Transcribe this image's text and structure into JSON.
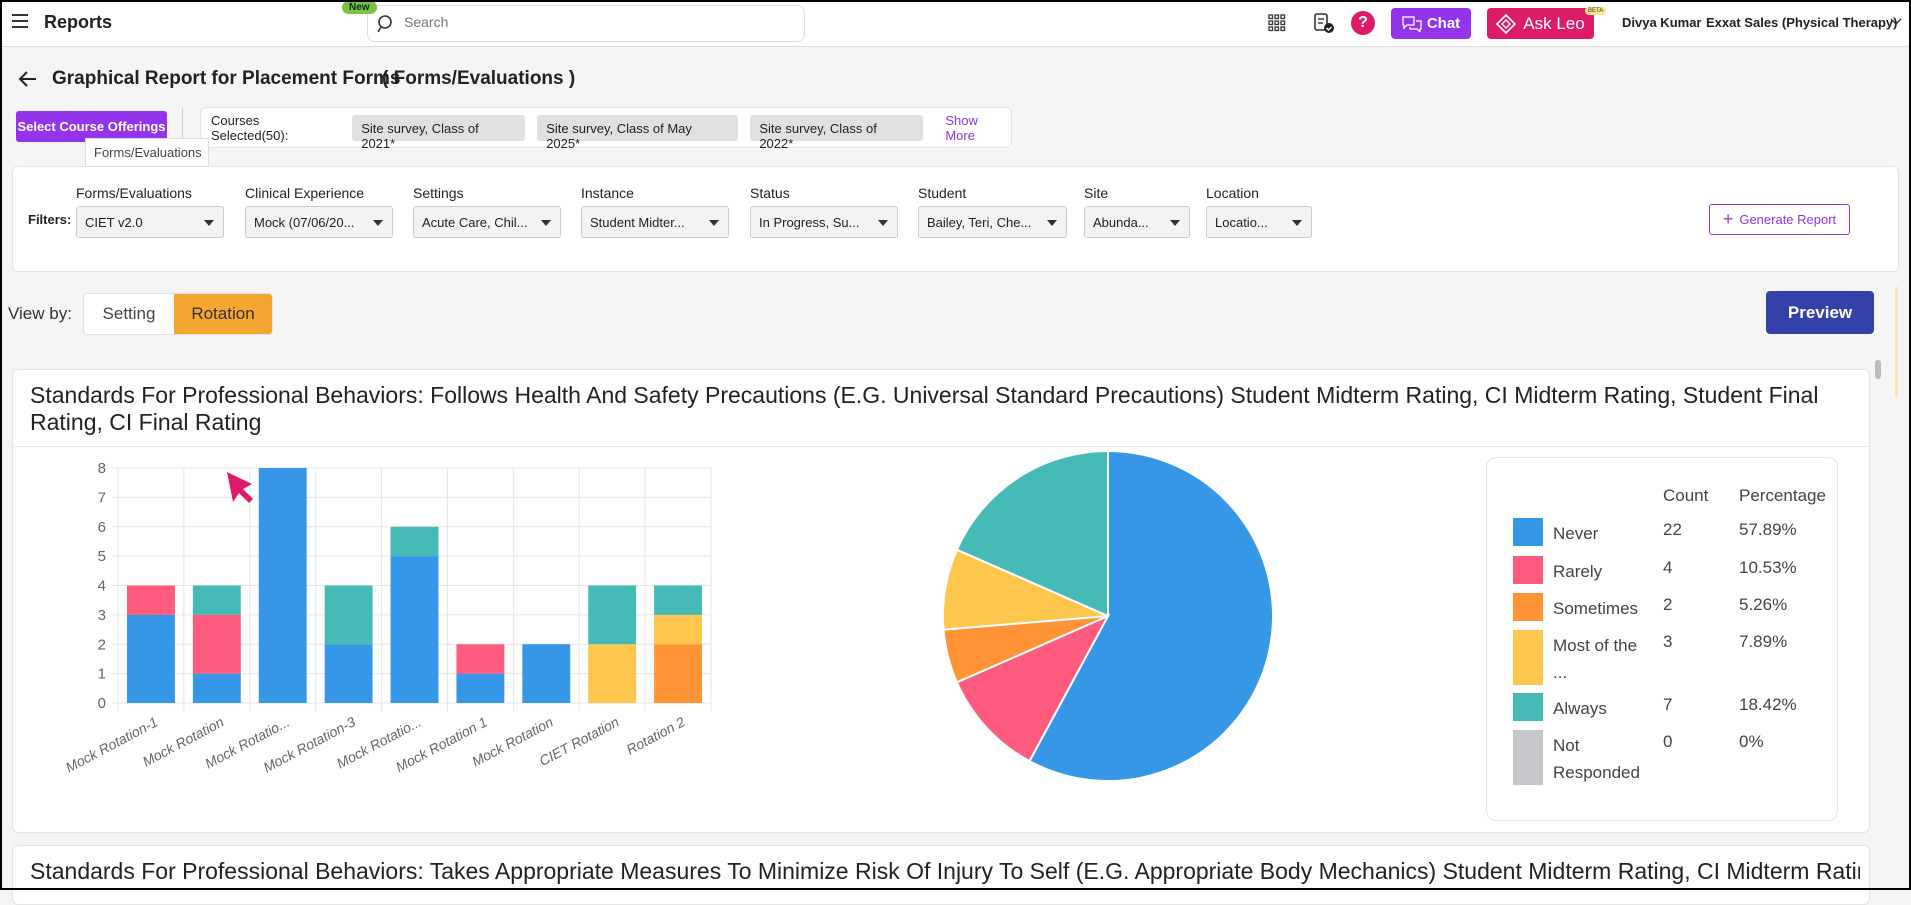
{
  "header": {
    "app_title": "Reports",
    "search_placeholder": "Search",
    "new_badge": "New",
    "chat_label": "Chat",
    "ask_leo_label": "Ask Leo",
    "beta_badge": "BETA",
    "user_name": "Divya Kumar",
    "org_name": "Exxat Sales (Physical Therapy)"
  },
  "page": {
    "title": "Graphical Report for Placement Forms",
    "subtitle": "( Forms/Evaluations )",
    "select_course_label": "Select Course Offerings",
    "tooltip": "Forms/Evaluations",
    "courses_selected_label": "Courses Selected(50):",
    "courses": [
      "Site survey, Class of 2021*",
      "Site survey, Class of May 2025*",
      "Site survey, Class of 2022*"
    ],
    "show_more": "Show More"
  },
  "filters": {
    "label": "Filters:",
    "items": [
      {
        "label": "Forms/Evaluations",
        "value": "CIET v2.0"
      },
      {
        "label": "Clinical Experience",
        "value": "Mock (07/06/20..."
      },
      {
        "label": "Settings",
        "value": "Acute Care, Chil..."
      },
      {
        "label": "Instance",
        "value": "Student Midter..."
      },
      {
        "label": "Status",
        "value": "In Progress, Su..."
      },
      {
        "label": "Student",
        "value": "Bailey, Teri, Che..."
      },
      {
        "label": "Site",
        "value": "Abunda..."
      },
      {
        "label": "Location",
        "value": "Locatio..."
      }
    ],
    "generate_label": "Generate Report"
  },
  "view": {
    "label": "View by:",
    "options": [
      "Setting",
      "Rotation"
    ],
    "selected": "Rotation",
    "preview_label": "Preview"
  },
  "cards": [
    {
      "title": "Standards For Professional Behaviors: Follows Health And Safety Precautions (E.G. Universal Standard Precautions) Student Midterm Rating, CI Midterm Rating, Student Final Rating, CI Final Rating"
    },
    {
      "title": "Standards For Professional Behaviors: Takes Appropriate Measures To Minimize Risk Of Injury To Self (E.G. Appropriate Body Mechanics) Student Midterm Rating, CI Midterm Rating, Stu"
    }
  ],
  "legend": {
    "count_header": "Count",
    "percentage_header": "Percentage"
  },
  "chart_data": [
    {
      "type": "bar",
      "stacked": true,
      "categories": [
        "Mock Rotation-1",
        "Mock Rotation",
        "Mock Rotatio...",
        "Mock Rotation-3",
        "Mock Rotatio...",
        "Mock Rotation 1",
        "Mock Rotation",
        "CIET Rotation",
        "Rotation 2"
      ],
      "ylim": [
        0,
        8
      ],
      "yticks": [
        "0",
        "1",
        "2",
        "3",
        "4",
        "5",
        "6",
        "7",
        "8"
      ],
      "grid": true,
      "series": [
        {
          "name": "Never",
          "color": "#3597e6",
          "values": [
            3,
            1,
            8,
            2,
            5,
            1,
            2,
            0,
            0
          ]
        },
        {
          "name": "Rarely",
          "color": "#ff5b7e",
          "values": [
            1,
            2,
            0,
            0,
            0,
            1,
            0,
            0,
            0
          ]
        },
        {
          "name": "Sometimes",
          "color": "#ff9436",
          "values": [
            0,
            0,
            0,
            0,
            0,
            0,
            0,
            0,
            2
          ]
        },
        {
          "name": "Most of the ...",
          "color": "#ffc64d",
          "values": [
            0,
            0,
            0,
            0,
            0,
            0,
            0,
            2,
            1
          ]
        },
        {
          "name": "Always",
          "color": "#45bab7",
          "values": [
            0,
            1,
            0,
            2,
            1,
            0,
            0,
            2,
            1
          ]
        },
        {
          "name": "Not Responded",
          "color": "#c6c7cb",
          "values": [
            0,
            0,
            0,
            0,
            0,
            0,
            0,
            0,
            0
          ]
        }
      ]
    },
    {
      "type": "pie",
      "slices": [
        {
          "label": "Never",
          "count": "22",
          "percentage": "57.89%",
          "value": 22,
          "color": "#3597e6"
        },
        {
          "label": "Rarely",
          "count": "4",
          "percentage": "10.53%",
          "value": 4,
          "color": "#ff5b7e"
        },
        {
          "label": "Sometimes",
          "count": "2",
          "percentage": "5.26%",
          "value": 2,
          "color": "#ff9436"
        },
        {
          "label": "Most of the ...",
          "count": "3",
          "percentage": "7.89%",
          "value": 3,
          "color": "#ffc64d"
        },
        {
          "label": "Always",
          "count": "7",
          "percentage": "18.42%",
          "value": 7,
          "color": "#45bab7"
        },
        {
          "label": "Not Responded",
          "count": "0",
          "percentage": "0%",
          "value": 0,
          "color": "#c6c7cb"
        }
      ]
    }
  ]
}
